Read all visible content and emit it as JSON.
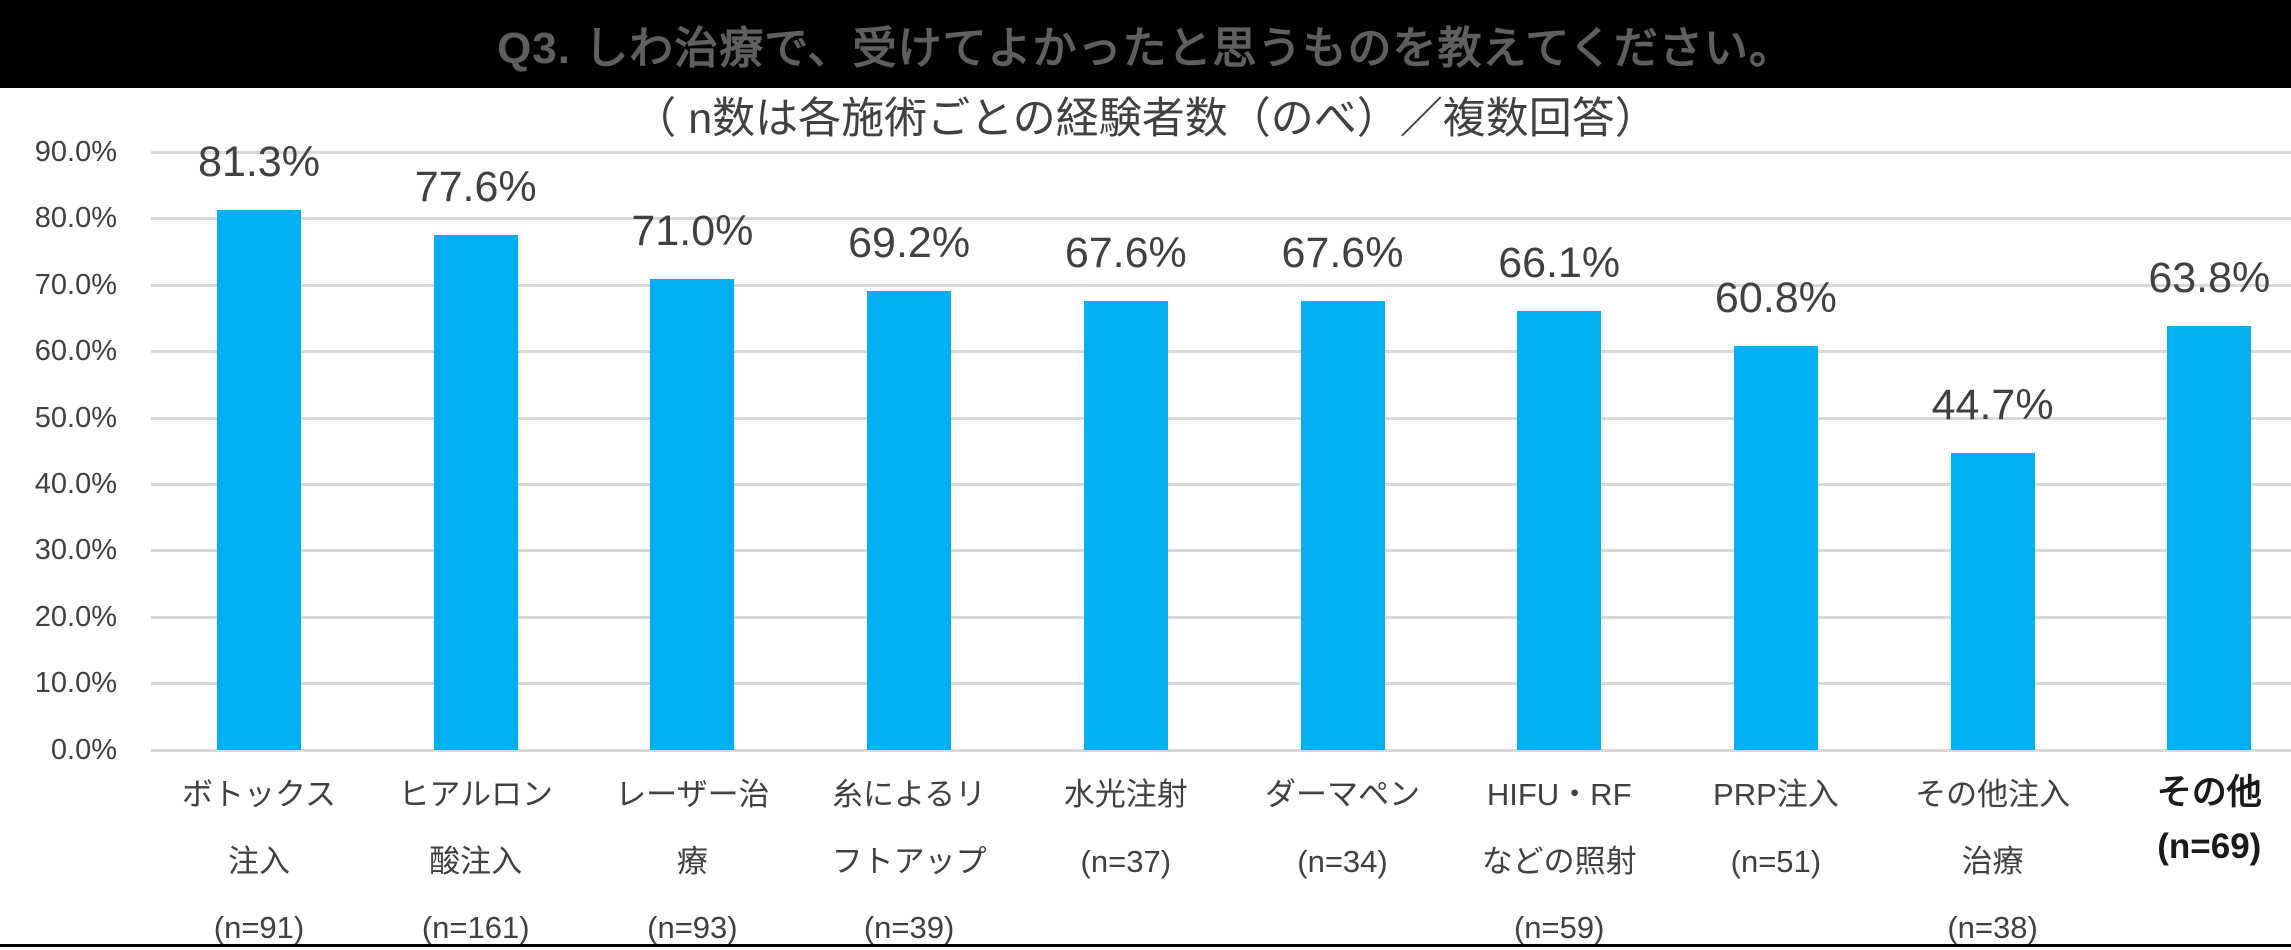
{
  "header": {
    "title": "Q3. しわ治療で、受けてよかったと思うものを教えてください。",
    "background": "#000000",
    "text_color": "#5F5F5F"
  },
  "chart_data": {
    "type": "bar",
    "title": "（ n数は各施術ごとの経験者数（のべ）／複数回答）",
    "ylabel": "",
    "xlabel": "",
    "ylim": [
      0,
      90
    ],
    "ytick_step": 10,
    "ytick_labels": [
      "0.0%",
      "10.0%",
      "20.0%",
      "30.0%",
      "40.0%",
      "50.0%",
      "60.0%",
      "70.0%",
      "80.0%",
      "90.0%"
    ],
    "grid": true,
    "grid_color": "#D9D9D9",
    "bar_color": "#00B0F0",
    "label_color": "#404040",
    "categories": [
      {
        "label": "ボトックス注入",
        "lines": [
          "ボトックス",
          "注入",
          "(n=91)"
        ],
        "n": 91,
        "value": 81.3,
        "value_label": "81.3%",
        "bold": false
      },
      {
        "label": "ヒアルロン酸注入",
        "lines": [
          "ヒアルロン",
          "酸注入",
          "(n=161)"
        ],
        "n": 161,
        "value": 77.6,
        "value_label": "77.6%",
        "bold": false
      },
      {
        "label": "レーザー治療",
        "lines": [
          "レーザー治",
          "療",
          "(n=93)"
        ],
        "n": 93,
        "value": 71.0,
        "value_label": "71.0%",
        "bold": false
      },
      {
        "label": "糸によるリフトアップ",
        "lines": [
          "糸によるリ",
          "フトアップ",
          "(n=39)"
        ],
        "n": 39,
        "value": 69.2,
        "value_label": "69.2%",
        "bold": false
      },
      {
        "label": "水光注射",
        "lines": [
          "水光注射",
          "(n=37)"
        ],
        "n": 37,
        "value": 67.6,
        "value_label": "67.6%",
        "bold": false
      },
      {
        "label": "ダーマペン",
        "lines": [
          "ダーマペン",
          "(n=34)"
        ],
        "n": 34,
        "value": 67.6,
        "value_label": "67.6%",
        "bold": false
      },
      {
        "label": "HIFU・RFなどの照射",
        "lines": [
          "HIFU・RF",
          "などの照射",
          "(n=59)"
        ],
        "n": 59,
        "value": 66.1,
        "value_label": "66.1%",
        "bold": false
      },
      {
        "label": "PRP注入",
        "lines": [
          "PRP注入",
          "(n=51)"
        ],
        "n": 51,
        "value": 60.8,
        "value_label": "60.8%",
        "bold": false
      },
      {
        "label": "その他注入治療",
        "lines": [
          "その他注入",
          "治療",
          "(n=38)"
        ],
        "n": 38,
        "value": 44.7,
        "value_label": "44.7%",
        "bold": false
      },
      {
        "label": "その他",
        "lines": [
          "その他",
          "(n=69)"
        ],
        "n": 69,
        "value": 63.8,
        "value_label": "63.8%",
        "bold": true
      }
    ]
  }
}
